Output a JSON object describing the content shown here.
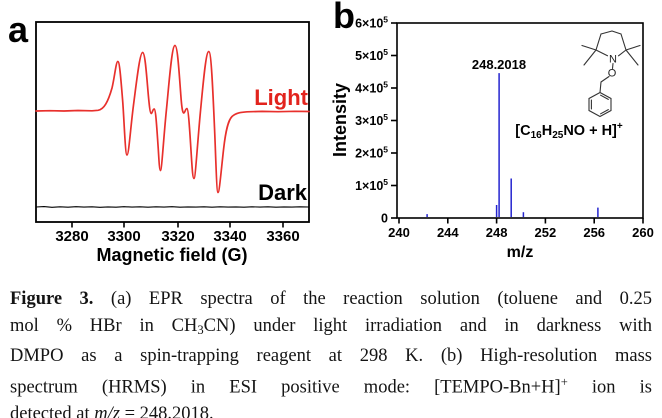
{
  "figure": {
    "panel_a": {
      "label": "a",
      "light_label": "Light",
      "dark_label": "Dark",
      "x_axis": {
        "title": "Magnetic field (G)",
        "ticks": [
          "3280",
          "3300",
          "3320",
          "3340",
          "3360"
        ]
      },
      "colors": {
        "light_curve": "#e8302c",
        "dark_curve": "#000000"
      }
    },
    "panel_b": {
      "label": "b",
      "y_axis": {
        "title": "Intensity",
        "ticks": [
          {
            "base": "0",
            "exp": ""
          },
          {
            "base": "1×10",
            "exp": "5"
          },
          {
            "base": "2×10",
            "exp": "5"
          },
          {
            "base": "3×10",
            "exp": "5"
          },
          {
            "base": "4×10",
            "exp": "5"
          },
          {
            "base": "5×10",
            "exp": "5"
          },
          {
            "base": "6×10",
            "exp": "5"
          }
        ]
      },
      "x_axis": {
        "title": "m/z",
        "ticks": [
          "240",
          "244",
          "248",
          "252",
          "256",
          "260"
        ]
      },
      "peak_annotation": "248.2018",
      "formula": {
        "p1": "[C",
        "sub1": "16",
        "p2": "H",
        "sub2": "25",
        "p3": "NO + H]",
        "sup": "+"
      },
      "structure_atoms": {
        "n": "N",
        "o": "O"
      },
      "peak_color": "#2424cf"
    }
  },
  "caption": {
    "lines": [
      {
        "b": "Figure 3.",
        "t": " (a) EPR spectra of the reaction solution (toluene and 0.25"
      },
      {
        "t1": "mol % HBr in CH",
        "sub": "3",
        "t2": "CN) under light irradiation and in darkness with"
      },
      {
        "t": "DMPO as a spin-trapping reagent at 298 K. (b) High-resolution mass"
      },
      {
        "t1": "spectrum (HRMS) in ESI positive mode: [TEMPO-Bn+H]",
        "sup": "+",
        "t2": " ion is"
      },
      {
        "t1": "detected at ",
        "i": "m/z",
        "t2": " = 248.2018."
      }
    ]
  },
  "chart_data": [
    {
      "type": "line",
      "panel": "a",
      "title": "EPR spectra under light and dark",
      "xlabel": "Magnetic field (G)",
      "ylabel": "",
      "xlim": [
        3266,
        3369
      ],
      "x_ticks": [
        3280,
        3300,
        3320,
        3340,
        3360
      ],
      "grid": false,
      "series": [
        {
          "name": "Light",
          "color": "#e8302c",
          "description": "DMPO spin-adduct EPR quartet, derivative lineshape centered on baseline",
          "peak_maxima_G": [
            3297.3,
            3306.8,
            3319.1,
            3331.9
          ],
          "peak_minima_G": [
            3300.7,
            3313.2,
            3326.0,
            3335.2
          ],
          "shoulder_G": [
            3311.0,
            3323.5
          ]
        },
        {
          "name": "Dark",
          "color": "#000000",
          "description": "flat noisy baseline, no EPR signal"
        }
      ],
      "legend_position": "labels beside curves (right side)"
    },
    {
      "type": "bar",
      "panel": "b",
      "title": "High-resolution mass spectrum (ESI positive)",
      "xlabel": "m/z",
      "ylabel": "Intensity",
      "xlim": [
        240,
        260
      ],
      "ylim": [
        0,
        600000
      ],
      "x_ticks": [
        240,
        244,
        248,
        252,
        256,
        260
      ],
      "y_tick_labels": [
        "0",
        "1×10⁵",
        "2×10⁵",
        "3×10⁵",
        "4×10⁵",
        "5×10⁵",
        "6×10⁵"
      ],
      "grid": false,
      "bar_color": "#2424cf",
      "peaks": [
        {
          "mz": 242.3,
          "intensity": 9000
        },
        {
          "mz": 248.0,
          "intensity": 37000
        },
        {
          "mz": 248.2018,
          "intensity": 445000,
          "label": "248.2018"
        },
        {
          "mz": 249.2,
          "intensity": 119000
        },
        {
          "mz": 250.2,
          "intensity": 15000
        },
        {
          "mz": 256.3,
          "intensity": 29000
        }
      ],
      "annotations": [
        "248.2018 above base peak",
        "[C16H25NO + H]+ formula",
        "TEMPO-Bn chemical structure drawing"
      ]
    }
  ]
}
